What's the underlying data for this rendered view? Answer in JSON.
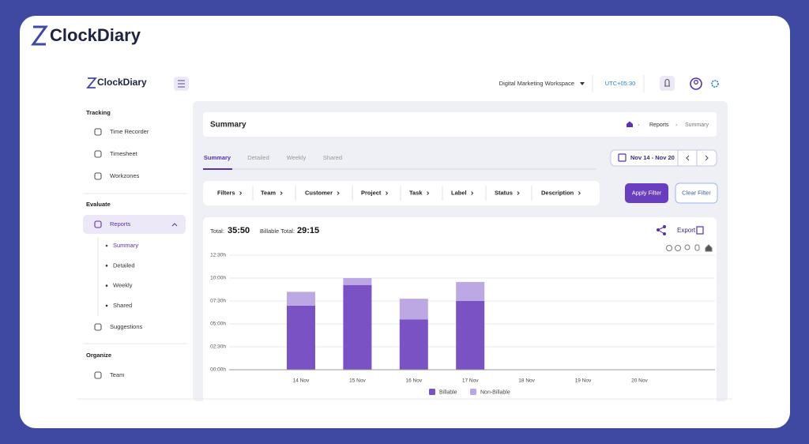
{
  "brand": "ClockDiary",
  "app": {
    "logo": "ClockDiary",
    "workspace": "Digital Marketing Workspace",
    "timezone": "UTC+05:30"
  },
  "sidebar": {
    "tracking": {
      "title": "Tracking",
      "items": [
        "Time Recorder",
        "Timesheet",
        "Workzones"
      ]
    },
    "evaluate": {
      "title": "Evaluate",
      "reports": "Reports",
      "report_views": [
        "Summary",
        "Detailed",
        "Weekly",
        "Shared"
      ],
      "items": [
        "Suggestions"
      ]
    },
    "organize": {
      "title": "Organize",
      "items": [
        "Team"
      ]
    }
  },
  "page": {
    "title": "Summary",
    "breadcrumb": [
      "Reports",
      "Summary"
    ],
    "tabs": [
      "Summary",
      "Detailed",
      "Weekly",
      "Shared"
    ],
    "date_range": "Nov 14 - Nov 20",
    "filters": [
      "Filters",
      "Team",
      "Customer",
      "Project",
      "Task",
      "Label",
      "Status",
      "Description"
    ],
    "apply": "Apply Filter",
    "clear": "Clear Filter"
  },
  "report": {
    "total_label": "Total:",
    "total": "35:50",
    "billable_label": "Billable Total:",
    "billable_total": "29:15",
    "export": "Export"
  },
  "chart_data": {
    "type": "bar",
    "stacked": true,
    "categories": [
      "14 Nov",
      "15 Nov",
      "16 Nov",
      "17 Nov",
      "18 Nov",
      "19 Nov",
      "20 Nov"
    ],
    "series": [
      {
        "name": "Billable",
        "color": "#7b52c4",
        "values": [
          7,
          9.25,
          5.5,
          7.5,
          0,
          0,
          0
        ]
      },
      {
        "name": "Non-Billable",
        "color": "#bca9e4",
        "values": [
          1.5,
          0.75,
          2.25,
          2.08,
          0,
          0,
          0
        ]
      }
    ],
    "ylim": [
      0,
      12.5
    ],
    "yticks": [
      {
        "value": 0,
        "label": "00:00h"
      },
      {
        "value": 2.5,
        "label": "02:30h"
      },
      {
        "value": 5,
        "label": "05:00h"
      },
      {
        "value": 7.5,
        "label": "07:30h"
      },
      {
        "value": 10,
        "label": "10:00h"
      },
      {
        "value": 12.5,
        "label": "12:30h"
      }
    ],
    "grid": true
  }
}
